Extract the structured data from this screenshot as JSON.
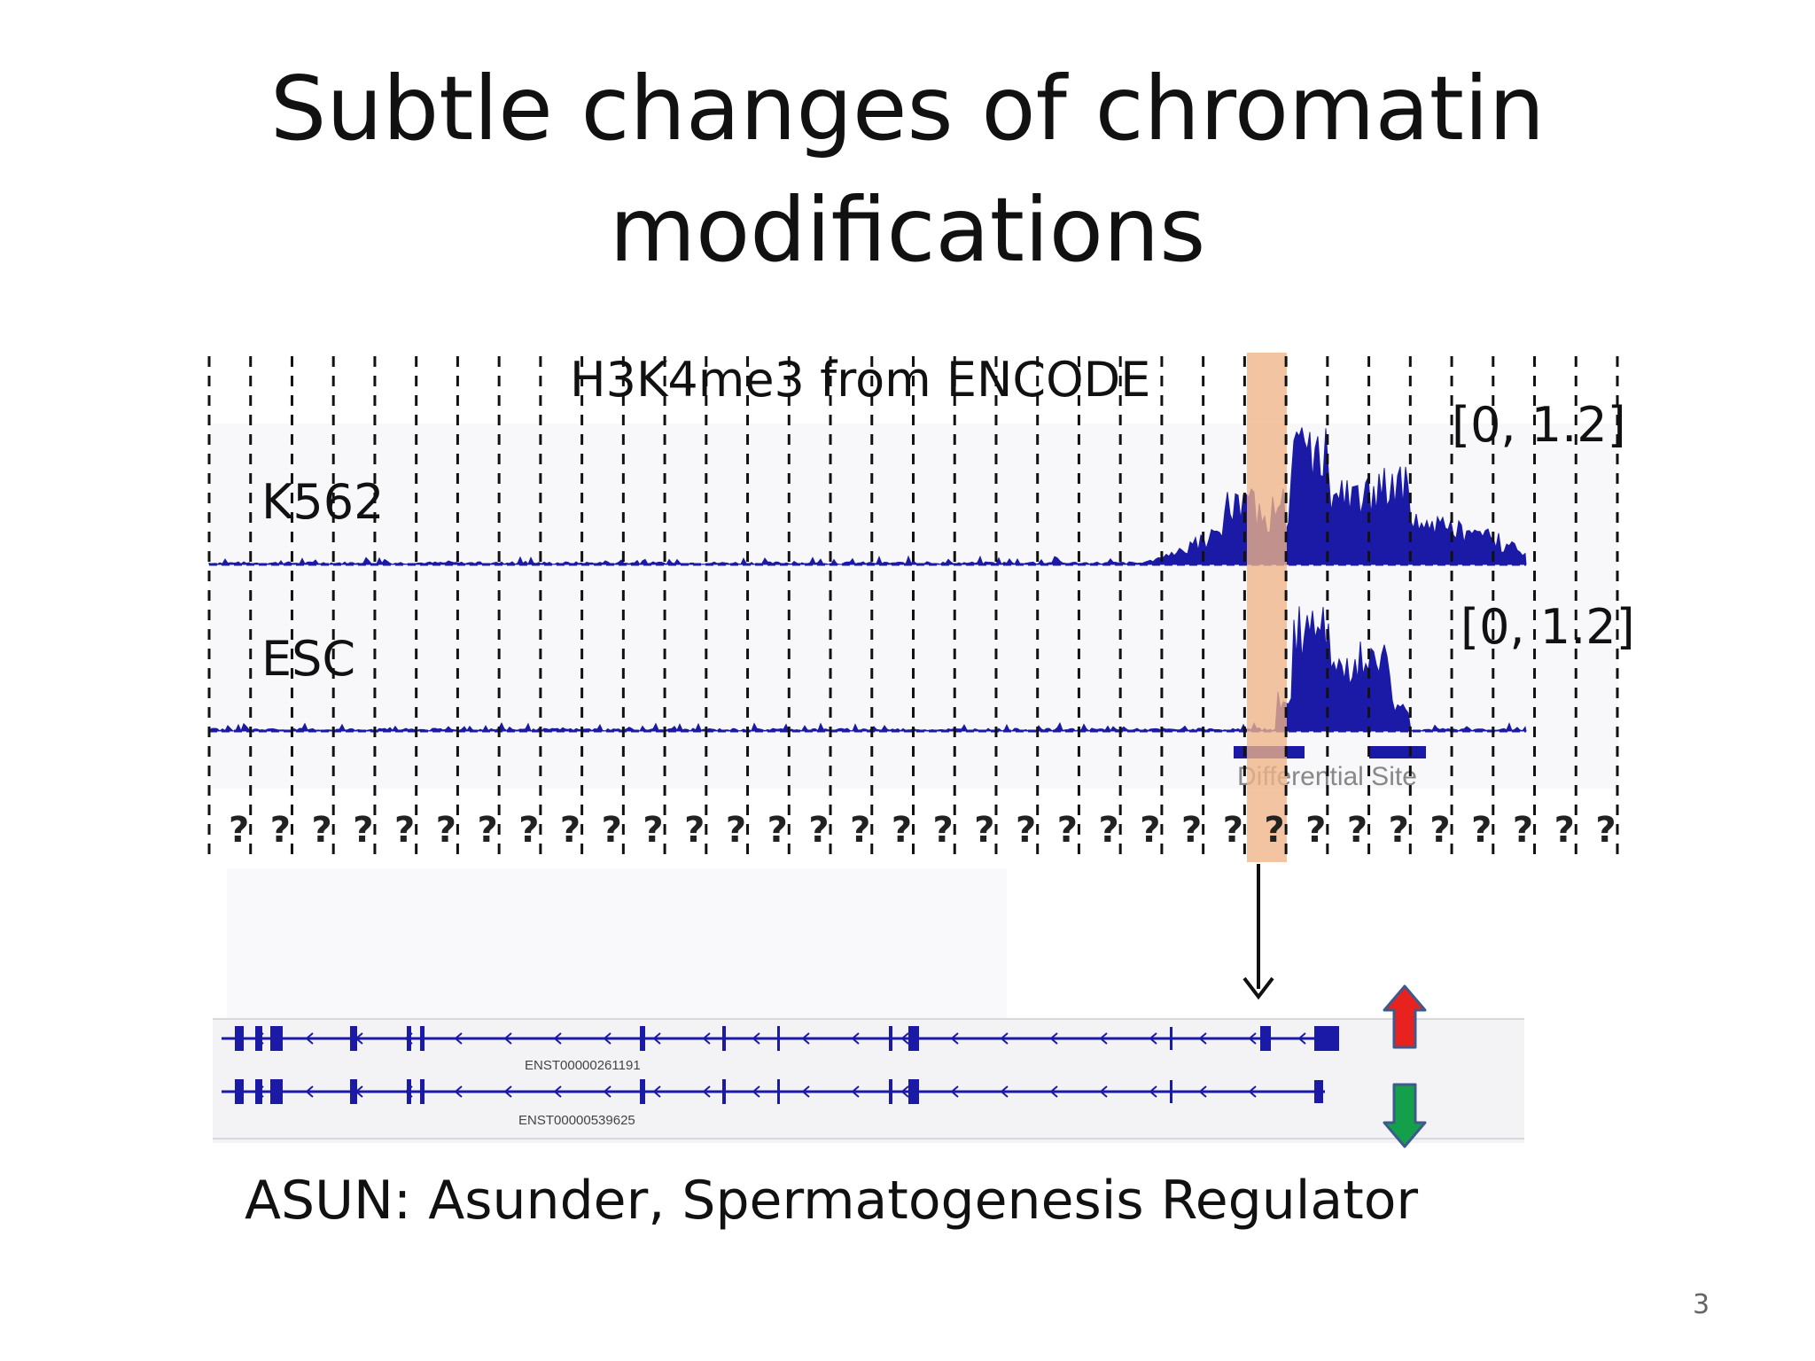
{
  "slide": {
    "title_line1": "Subtle changes of chromatin",
    "title_line2": "modifications",
    "track_title": "H3K4me3 from ENCODE",
    "slide_number": "3"
  },
  "tracks": [
    {
      "label": "K562",
      "range": "[0, 1.2]"
    },
    {
      "label": "ESC",
      "range": "[0, 1.2]"
    }
  ],
  "bins": {
    "count": 34,
    "bin_label": "?",
    "highlight_index": 25
  },
  "differential_site": {
    "label": "Differential Site"
  },
  "transcripts": [
    {
      "id": "ENST00000261191",
      "direction": "up"
    },
    {
      "id": "ENST00000539625",
      "direction": "down"
    }
  ],
  "gene": {
    "caption": "ASUN: Asunder, Spermatogenesis Regulator"
  },
  "colors": {
    "signal": "#1a1aa6",
    "highlight": "#efb486",
    "up_arrow": "#e8231f",
    "down_arrow": "#14a04a",
    "arrow_outline": "#3c5a8c"
  }
}
